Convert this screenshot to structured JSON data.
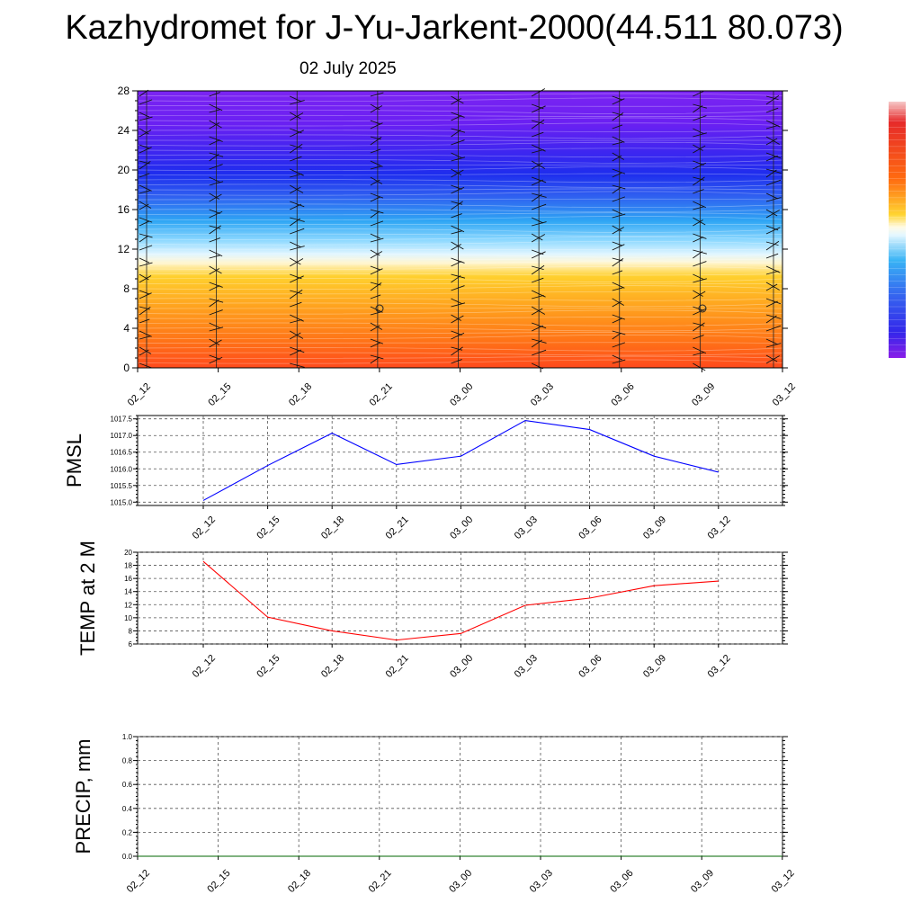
{
  "title": "Kazhydromet for J-Yu-Jarkent-2000(44.511 80.073)",
  "date_label": "02 July 2025",
  "chart_data": [
    {
      "type": "heatmap",
      "y_ticks": [
        0,
        4,
        8,
        12,
        16,
        20,
        24,
        28
      ],
      "ylim": [
        0,
        28
      ],
      "x_ticks": [
        "02_12",
        "02_15",
        "02_18",
        "02_21",
        "03_00",
        "03_03",
        "03_06",
        "03_09",
        "03_12"
      ],
      "colorbar": "blue-violet (top) to orange-red (bottom)"
    },
    {
      "type": "line",
      "ylabel": "PMSL",
      "x": [
        "02_12",
        "02_15",
        "02_18",
        "02_21",
        "03_00",
        "03_03",
        "03_06",
        "03_09",
        "03_12"
      ],
      "ylim": [
        1014.9,
        1017.6
      ],
      "y_ticks": [
        "1015.0",
        "1015.5",
        "1016.0",
        "1016.5",
        "1017.0",
        "1017.5"
      ],
      "series": [
        {
          "values": [
            1015.05,
            1016.1,
            1017.07,
            1016.13,
            1016.38,
            1017.45,
            1017.18,
            1016.38,
            1015.9
          ],
          "color": "#0000ff"
        }
      ]
    },
    {
      "type": "line",
      "ylabel": "TEMP at 2 M",
      "x": [
        "02_12",
        "02_15",
        "02_18",
        "02_21",
        "03_00",
        "03_03",
        "03_06",
        "03_09",
        "03_12"
      ],
      "ylim": [
        6,
        20
      ],
      "y_ticks": [
        "6",
        "8",
        "10",
        "12",
        "14",
        "16",
        "18",
        "20"
      ],
      "series": [
        {
          "values": [
            18.6,
            10.1,
            8.0,
            6.6,
            7.6,
            11.9,
            13.0,
            14.9,
            15.6
          ],
          "color": "#ff0000"
        }
      ]
    },
    {
      "type": "line",
      "ylabel": "PRECIP, mm",
      "x_ticks": [
        "02_12",
        "02_15",
        "02_18",
        "02_21",
        "03_00",
        "03_03",
        "03_06",
        "03_09",
        "03_12"
      ],
      "ylim": [
        0,
        1
      ],
      "y_ticks": [
        "0.0",
        "0.2",
        "0.4",
        "0.6",
        "0.8",
        "1.0"
      ],
      "series": [
        {
          "values": [
            0,
            0,
            0,
            0,
            0,
            0,
            0,
            0,
            0
          ],
          "color": "#006400"
        }
      ]
    }
  ]
}
